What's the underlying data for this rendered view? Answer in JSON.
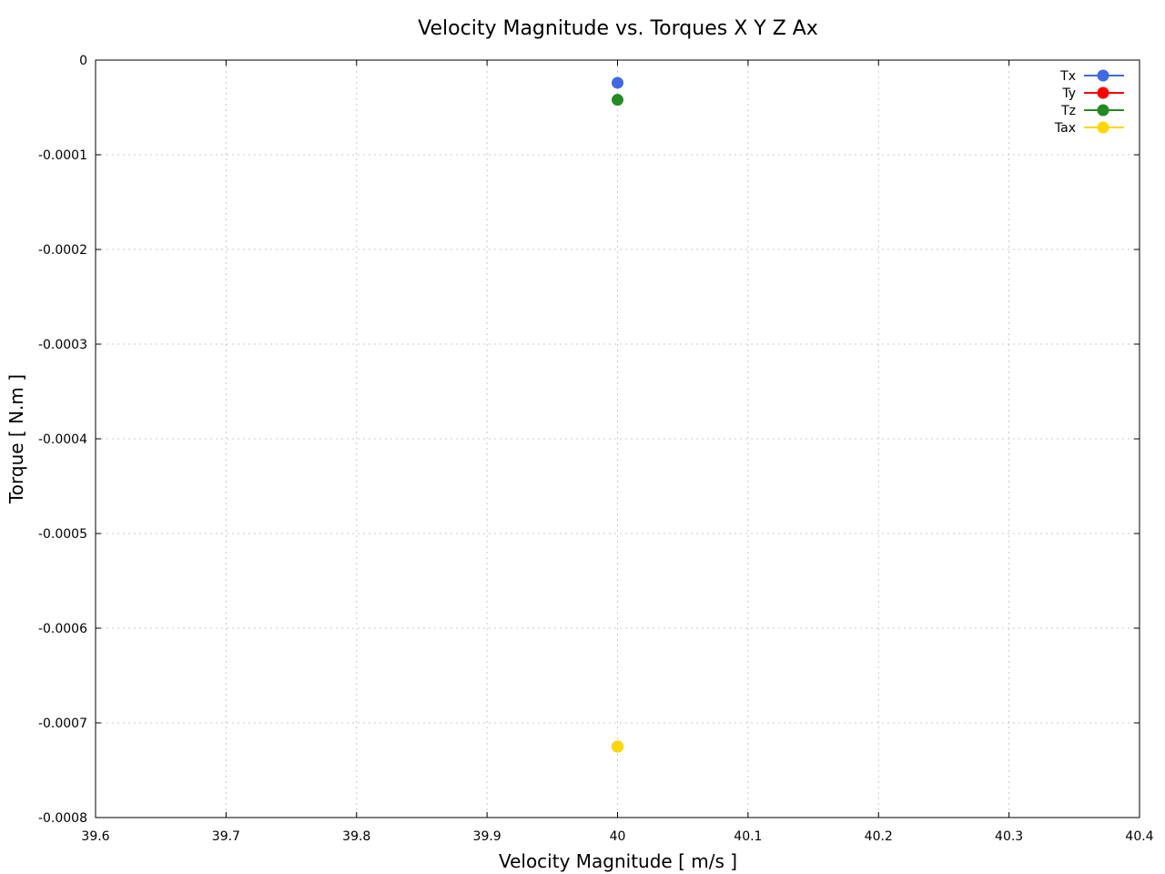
{
  "chart_data": {
    "type": "scatter",
    "title": "Velocity Magnitude vs. Torques X Y Z Ax",
    "xlabel": "Velocity Magnitude [ m/s ]",
    "ylabel": "Torque [ N.m ]",
    "xlim": [
      39.6,
      40.4
    ],
    "ylim": [
      -0.0008,
      0
    ],
    "x_ticks": [
      39.6,
      39.7,
      39.8,
      39.9,
      40,
      40.1,
      40.2,
      40.3,
      40.4
    ],
    "x_tick_labels": [
      "39.6",
      "39.7",
      "39.8",
      "39.9",
      "40",
      "40.1",
      "40.2",
      "40.3",
      "40.4"
    ],
    "y_ticks": [
      0,
      -0.0001,
      -0.0002,
      -0.0003,
      -0.0004,
      -0.0005,
      -0.0006,
      -0.0007,
      -0.0008
    ],
    "y_tick_labels": [
      "0",
      "-0.0001",
      "-0.0002",
      "-0.0003",
      "-0.0004",
      "-0.0005",
      "-0.0006",
      "-0.0007",
      "-0.0008"
    ],
    "grid": true,
    "legend_position": "top-right",
    "series": [
      {
        "name": "Tx",
        "color": "#4169e1",
        "x": [
          40
        ],
        "y": [
          -2.4e-05
        ]
      },
      {
        "name": "Ty",
        "color": "#ff0000",
        "x": [
          40
        ],
        "y": [
          -0.000725
        ]
      },
      {
        "name": "Tz",
        "color": "#228b22",
        "x": [
          40
        ],
        "y": [
          -4.2e-05
        ]
      },
      {
        "name": "Tax",
        "color": "#ffd700",
        "x": [
          40
        ],
        "y": [
          -0.000725
        ]
      }
    ]
  }
}
